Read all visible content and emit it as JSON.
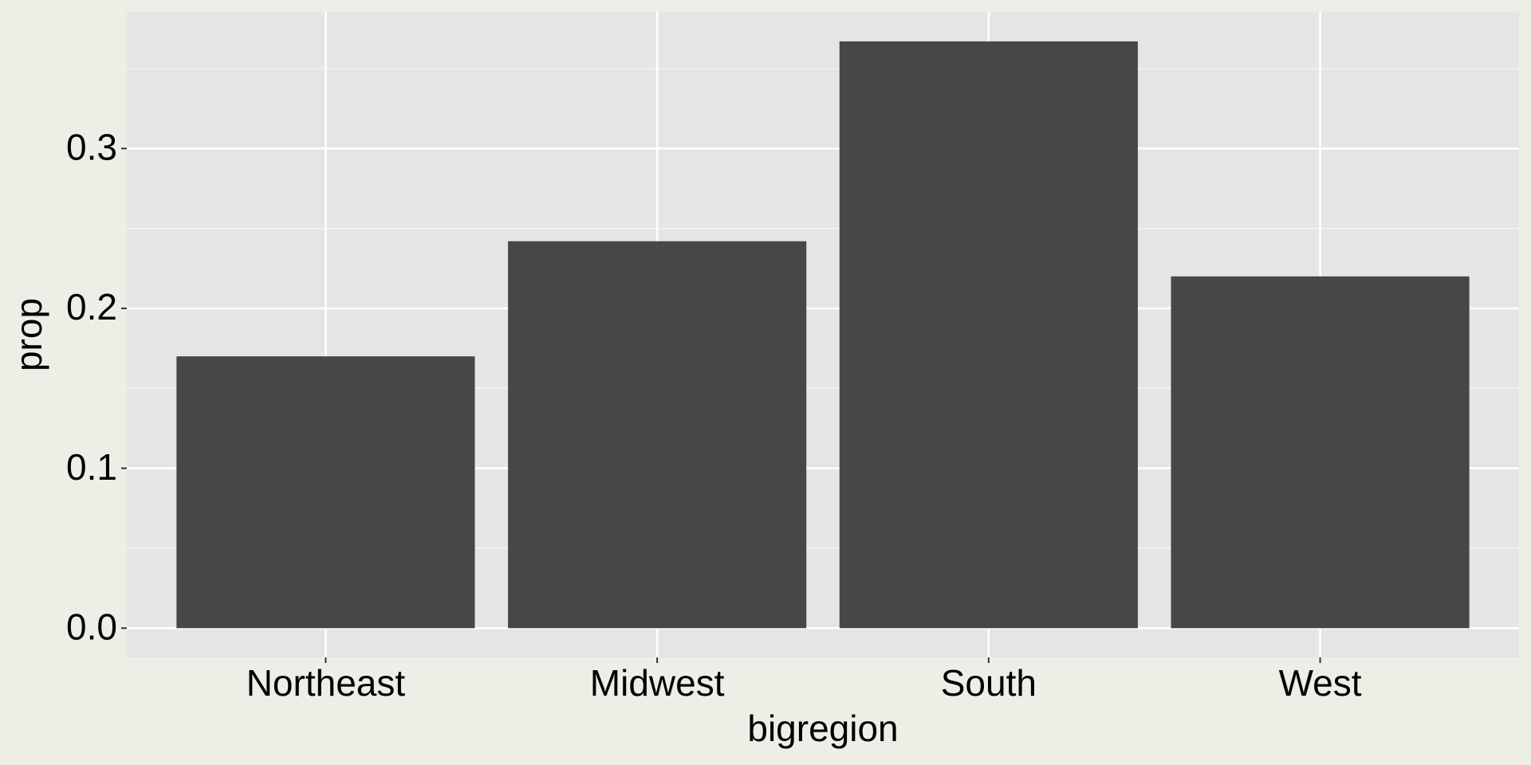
{
  "chart_data": {
    "type": "bar",
    "x_label": "bigregion",
    "y_label": "prop",
    "categories": [
      "Northeast",
      "Midwest",
      "South",
      "West"
    ],
    "values": [
      0.17,
      0.242,
      0.367,
      0.22
    ],
    "color": "#474747",
    "ylim": [
      -0.0183,
      0.3854
    ],
    "yticks": [
      {
        "value": 0,
        "label": "0.0"
      },
      0.1,
      0.2,
      0.3
    ],
    "grid": true
  }
}
